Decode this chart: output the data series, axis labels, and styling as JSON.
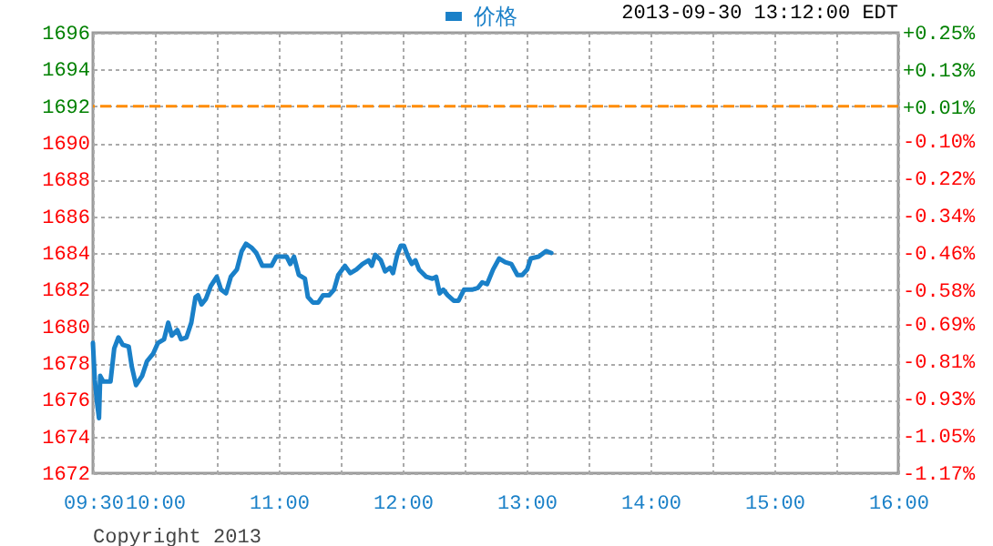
{
  "chart_data": {
    "type": "line",
    "legend": "top",
    "grid": true,
    "marker": "none",
    "line_style": "solid",
    "annotations": [
      "2013-09-30 13:12:00 EDT",
      "Copyright 2013"
    ],
    "xlim": [
      9.5,
      16
    ],
    "xticks": [
      {
        "value": 9.5,
        "label": "09:30"
      },
      {
        "value": 10,
        "label": "10:00"
      },
      {
        "value": 10.5,
        "label": null
      },
      {
        "value": 11,
        "label": "11:00"
      },
      {
        "value": 11.5,
        "label": null
      },
      {
        "value": 12,
        "label": "12:00"
      },
      {
        "value": 12.5,
        "label": null
      },
      {
        "value": 13,
        "label": "13:00"
      },
      {
        "value": 13.5,
        "label": null
      },
      {
        "value": 14,
        "label": "14:00"
      },
      {
        "value": 14.5,
        "label": null
      },
      {
        "value": 15,
        "label": "15:00"
      },
      {
        "value": 15.5,
        "label": null
      },
      {
        "value": 16,
        "label": "16:00"
      }
    ],
    "ylim": [
      1672,
      1696
    ],
    "yticks": [
      1672,
      1674,
      1676,
      1678,
      1680,
      1682,
      1684,
      1686,
      1688,
      1690,
      1692,
      1694,
      1696
    ],
    "y2lim": [
      -1.17,
      0.25
    ],
    "y2ticks": [
      {
        "value": 0.25,
        "label": "+0.25%"
      },
      {
        "value": 0.13,
        "label": "+0.13%"
      },
      {
        "value": 0.01,
        "label": "+0.01%"
      },
      {
        "value": -0.1,
        "label": "-0.10%"
      },
      {
        "value": -0.22,
        "label": "-0.22%"
      },
      {
        "value": -0.34,
        "label": "-0.34%"
      },
      {
        "value": -0.46,
        "label": "-0.46%"
      },
      {
        "value": -0.58,
        "label": "-0.58%"
      },
      {
        "value": -0.69,
        "label": "-0.69%"
      },
      {
        "value": -0.81,
        "label": "-0.81%"
      },
      {
        "value": -0.93,
        "label": "-0.93%"
      },
      {
        "value": -1.05,
        "label": "-1.05%"
      },
      {
        "value": -1.17,
        "label": "-1.17%"
      }
    ],
    "ref_lines": [
      {
        "axis": "y",
        "value": 1692,
        "color": "#ff8c00",
        "line_style": "dashed"
      }
    ],
    "series": [
      {
        "name": "价格",
        "color": "#1a80c8",
        "x": [
          9.5,
          9.515,
          9.534,
          9.549,
          9.559,
          9.583,
          9.642,
          9.672,
          9.706,
          9.74,
          9.789,
          9.814,
          9.848,
          9.897,
          9.936,
          9.985,
          10.025,
          10.074,
          10.108,
          10.137,
          10.181,
          10.211,
          10.255,
          10.294,
          10.328,
          10.348,
          10.377,
          10.412,
          10.451,
          10.5,
          10.534,
          10.574,
          10.613,
          10.662,
          10.701,
          10.735,
          10.779,
          10.819,
          10.868,
          10.941,
          10.98,
          11.029,
          11.064,
          11.093,
          11.123,
          11.162,
          11.211,
          11.235,
          11.275,
          11.319,
          11.358,
          11.407,
          11.446,
          11.48,
          11.534,
          11.578,
          11.627,
          11.676,
          11.725,
          11.75,
          11.779,
          11.824,
          11.858,
          11.897,
          11.922,
          11.956,
          11.985,
          12.01,
          12.044,
          12.074,
          12.103,
          12.132,
          12.191,
          12.24,
          12.27,
          12.299,
          12.328,
          12.363,
          12.412,
          12.451,
          12.495,
          12.559,
          12.608,
          12.642,
          12.681,
          12.73,
          12.779,
          12.828,
          12.877,
          12.926,
          12.966,
          13.005,
          13.034,
          13.098,
          13.157,
          13.2
        ],
        "values": [
          1679.1,
          1677.1,
          1675.8,
          1675.0,
          1677.3,
          1677.0,
          1677.0,
          1678.8,
          1679.4,
          1679.0,
          1678.9,
          1677.8,
          1676.8,
          1677.3,
          1678.1,
          1678.5,
          1679.1,
          1679.3,
          1680.2,
          1679.5,
          1679.8,
          1679.3,
          1679.4,
          1680.2,
          1681.6,
          1681.7,
          1681.2,
          1681.5,
          1682.2,
          1682.7,
          1682.0,
          1681.8,
          1682.7,
          1683.1,
          1684.1,
          1684.5,
          1684.3,
          1684.0,
          1683.3,
          1683.3,
          1683.8,
          1683.8,
          1683.8,
          1683.4,
          1683.8,
          1682.8,
          1682.6,
          1681.6,
          1681.3,
          1681.3,
          1681.7,
          1681.7,
          1682.0,
          1682.8,
          1683.3,
          1682.9,
          1683.1,
          1683.4,
          1683.6,
          1683.3,
          1683.9,
          1683.6,
          1683.0,
          1683.2,
          1682.9,
          1683.9,
          1684.4,
          1684.4,
          1683.8,
          1683.4,
          1683.6,
          1683.1,
          1682.7,
          1682.6,
          1682.7,
          1681.8,
          1682.0,
          1681.7,
          1681.4,
          1681.4,
          1682.0,
          1682.0,
          1682.1,
          1682.4,
          1682.3,
          1683.1,
          1683.7,
          1683.5,
          1683.4,
          1682.8,
          1682.8,
          1683.1,
          1683.7,
          1683.8,
          1684.1,
          1684.0
        ]
      }
    ]
  }
}
